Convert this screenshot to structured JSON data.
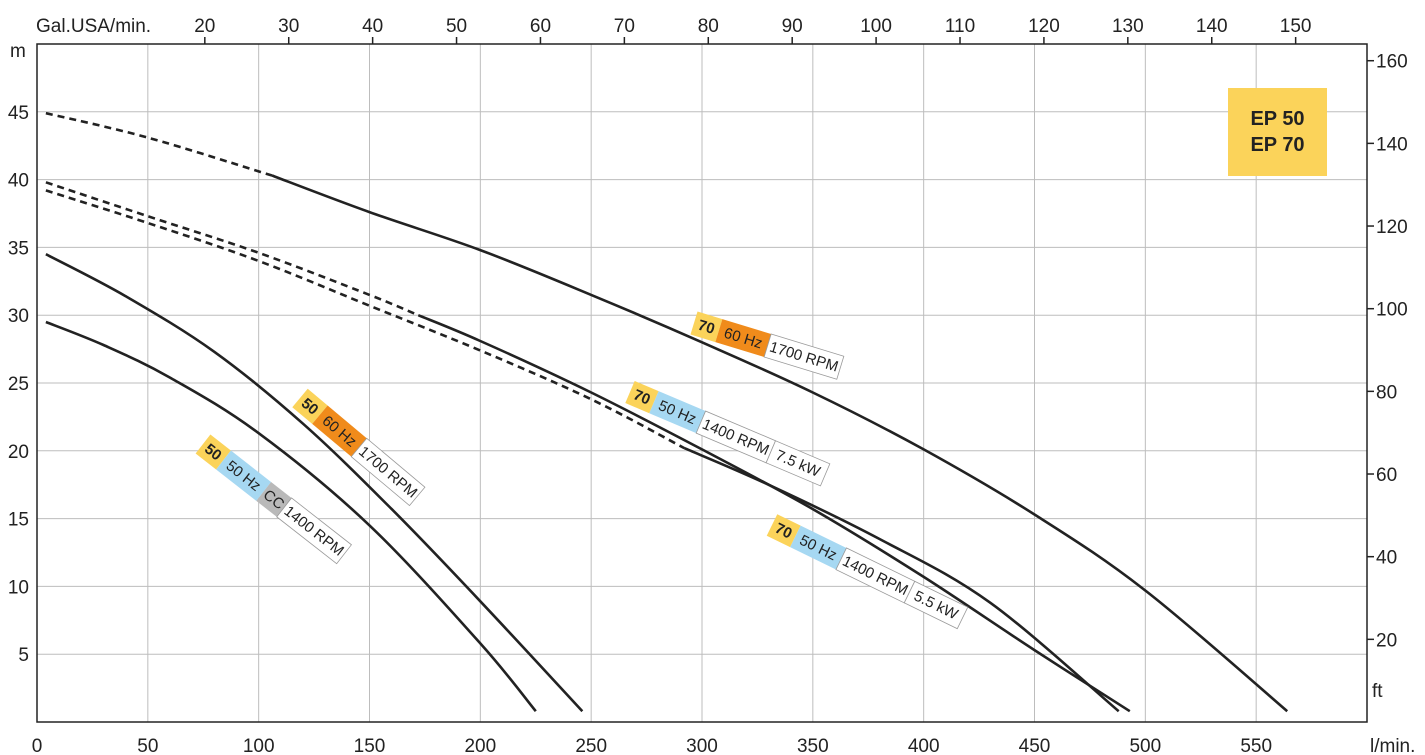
{
  "units": {
    "x_bottom": "l/min.",
    "x_top": "Gal.USA/min.",
    "y_left": "m",
    "y_right": "ft"
  },
  "models": [
    "EP 50",
    "EP 70"
  ],
  "colors": {
    "model_badge": "#fbd35a",
    "hz60": "#f08b1b",
    "hz50": "#a6d8f2",
    "cc": "#b9b9b9",
    "grid": "#bdbdbd",
    "curve": "#222222"
  },
  "chart_data": {
    "type": "line",
    "x_bottom": {
      "label": "l/min.",
      "ticks": [
        0,
        50,
        100,
        150,
        200,
        250,
        300,
        350,
        400,
        450,
        500,
        550
      ],
      "range": [
        0,
        600
      ]
    },
    "x_top": {
      "label": "Gal.USA/min.",
      "ticks": [
        20,
        30,
        40,
        50,
        60,
        70,
        80,
        90,
        100,
        110,
        120,
        130,
        140,
        150
      ]
    },
    "y_left": {
      "label": "m",
      "ticks": [
        5,
        10,
        15,
        20,
        25,
        30,
        35,
        40,
        45
      ],
      "range": [
        0,
        50
      ]
    },
    "y_right": {
      "label": "ft",
      "ticks": [
        20,
        40,
        60,
        80,
        100,
        120,
        140,
        160
      ]
    },
    "grid": true,
    "series": [
      {
        "model": "50",
        "hz": "50 Hz",
        "extra": "CC",
        "rpm": "1400 RPM",
        "kw": "",
        "solid": [
          [
            4,
            29.5
          ],
          [
            30,
            27.8
          ],
          [
            60,
            25.4
          ],
          [
            100,
            21.3
          ],
          [
            150,
            14.5
          ],
          [
            200,
            5.8
          ],
          [
            225,
            0.8
          ]
        ],
        "dashed": []
      },
      {
        "model": "50",
        "hz": "60 Hz",
        "extra": "",
        "rpm": "1700 RPM",
        "kw": "",
        "solid": [
          [
            4,
            34.5
          ],
          [
            40,
            31.4
          ],
          [
            80,
            27.3
          ],
          [
            120,
            22.0
          ],
          [
            160,
            15.7
          ],
          [
            200,
            8.9
          ],
          [
            246,
            0.8
          ]
        ],
        "dashed": []
      },
      {
        "model": "70",
        "hz": "50 Hz",
        "extra": "",
        "rpm": "1400 RPM",
        "kw": "7.5 kW",
        "solid": [
          [
            172,
            30.0
          ],
          [
            200,
            28.1
          ],
          [
            250,
            24.3
          ],
          [
            300,
            20.1
          ],
          [
            350,
            15.7
          ],
          [
            400,
            10.7
          ],
          [
            450,
            5.3
          ],
          [
            493,
            0.8
          ]
        ],
        "dashed": [
          [
            4,
            39.8
          ],
          [
            50,
            37.3
          ],
          [
            100,
            34.6
          ],
          [
            150,
            31.5
          ],
          [
            172,
            30.0
          ]
        ]
      },
      {
        "model": "70",
        "hz": "50 Hz",
        "extra": "",
        "rpm": "1400 RPM",
        "kw": "5.5 kW",
        "solid": [
          [
            292,
            20.2
          ],
          [
            330,
            17.5
          ],
          [
            380,
            13.5
          ],
          [
            430,
            8.8
          ],
          [
            488,
            0.8
          ]
        ],
        "dashed": [
          [
            4,
            39.2
          ],
          [
            50,
            36.8
          ],
          [
            100,
            34.0
          ],
          [
            150,
            30.7
          ],
          [
            200,
            27.4
          ],
          [
            250,
            23.8
          ],
          [
            292,
            20.2
          ]
        ]
      },
      {
        "model": "70",
        "hz": "60 Hz",
        "extra": "",
        "rpm": "1700 RPM",
        "kw": "",
        "solid": [
          [
            106,
            40.3
          ],
          [
            150,
            37.6
          ],
          [
            200,
            34.8
          ],
          [
            250,
            31.5
          ],
          [
            300,
            28.0
          ],
          [
            350,
            24.3
          ],
          [
            400,
            20.1
          ],
          [
            450,
            15.3
          ],
          [
            500,
            9.7
          ],
          [
            564,
            0.8
          ]
        ],
        "dashed": [
          [
            4,
            44.9
          ],
          [
            50,
            43.1
          ],
          [
            106,
            40.3
          ]
        ]
      }
    ],
    "labels": [
      {
        "series": 0,
        "parts": [
          [
            "50",
            "model"
          ],
          [
            "50 Hz",
            "hz50"
          ],
          [
            "CC",
            "cc"
          ],
          [
            "1400 RPM",
            "plain"
          ]
        ]
      },
      {
        "series": 1,
        "parts": [
          [
            "50",
            "model"
          ],
          [
            "60 Hz",
            "hz60"
          ],
          [
            "1700 RPM",
            "plain"
          ]
        ]
      },
      {
        "series": 2,
        "parts": [
          [
            "70",
            "model"
          ],
          [
            "50 Hz",
            "hz50"
          ],
          [
            "1400 RPM",
            "plain"
          ],
          [
            "7.5 kW",
            "plain"
          ]
        ]
      },
      {
        "series": 3,
        "parts": [
          [
            "70",
            "model"
          ],
          [
            "50 Hz",
            "hz50"
          ],
          [
            "1400 RPM",
            "plain"
          ],
          [
            "5.5 kW",
            "plain"
          ]
        ]
      },
      {
        "series": 4,
        "parts": [
          [
            "70",
            "model"
          ],
          [
            "60 Hz",
            "hz60"
          ],
          [
            "1700 RPM",
            "plain"
          ]
        ]
      }
    ]
  }
}
